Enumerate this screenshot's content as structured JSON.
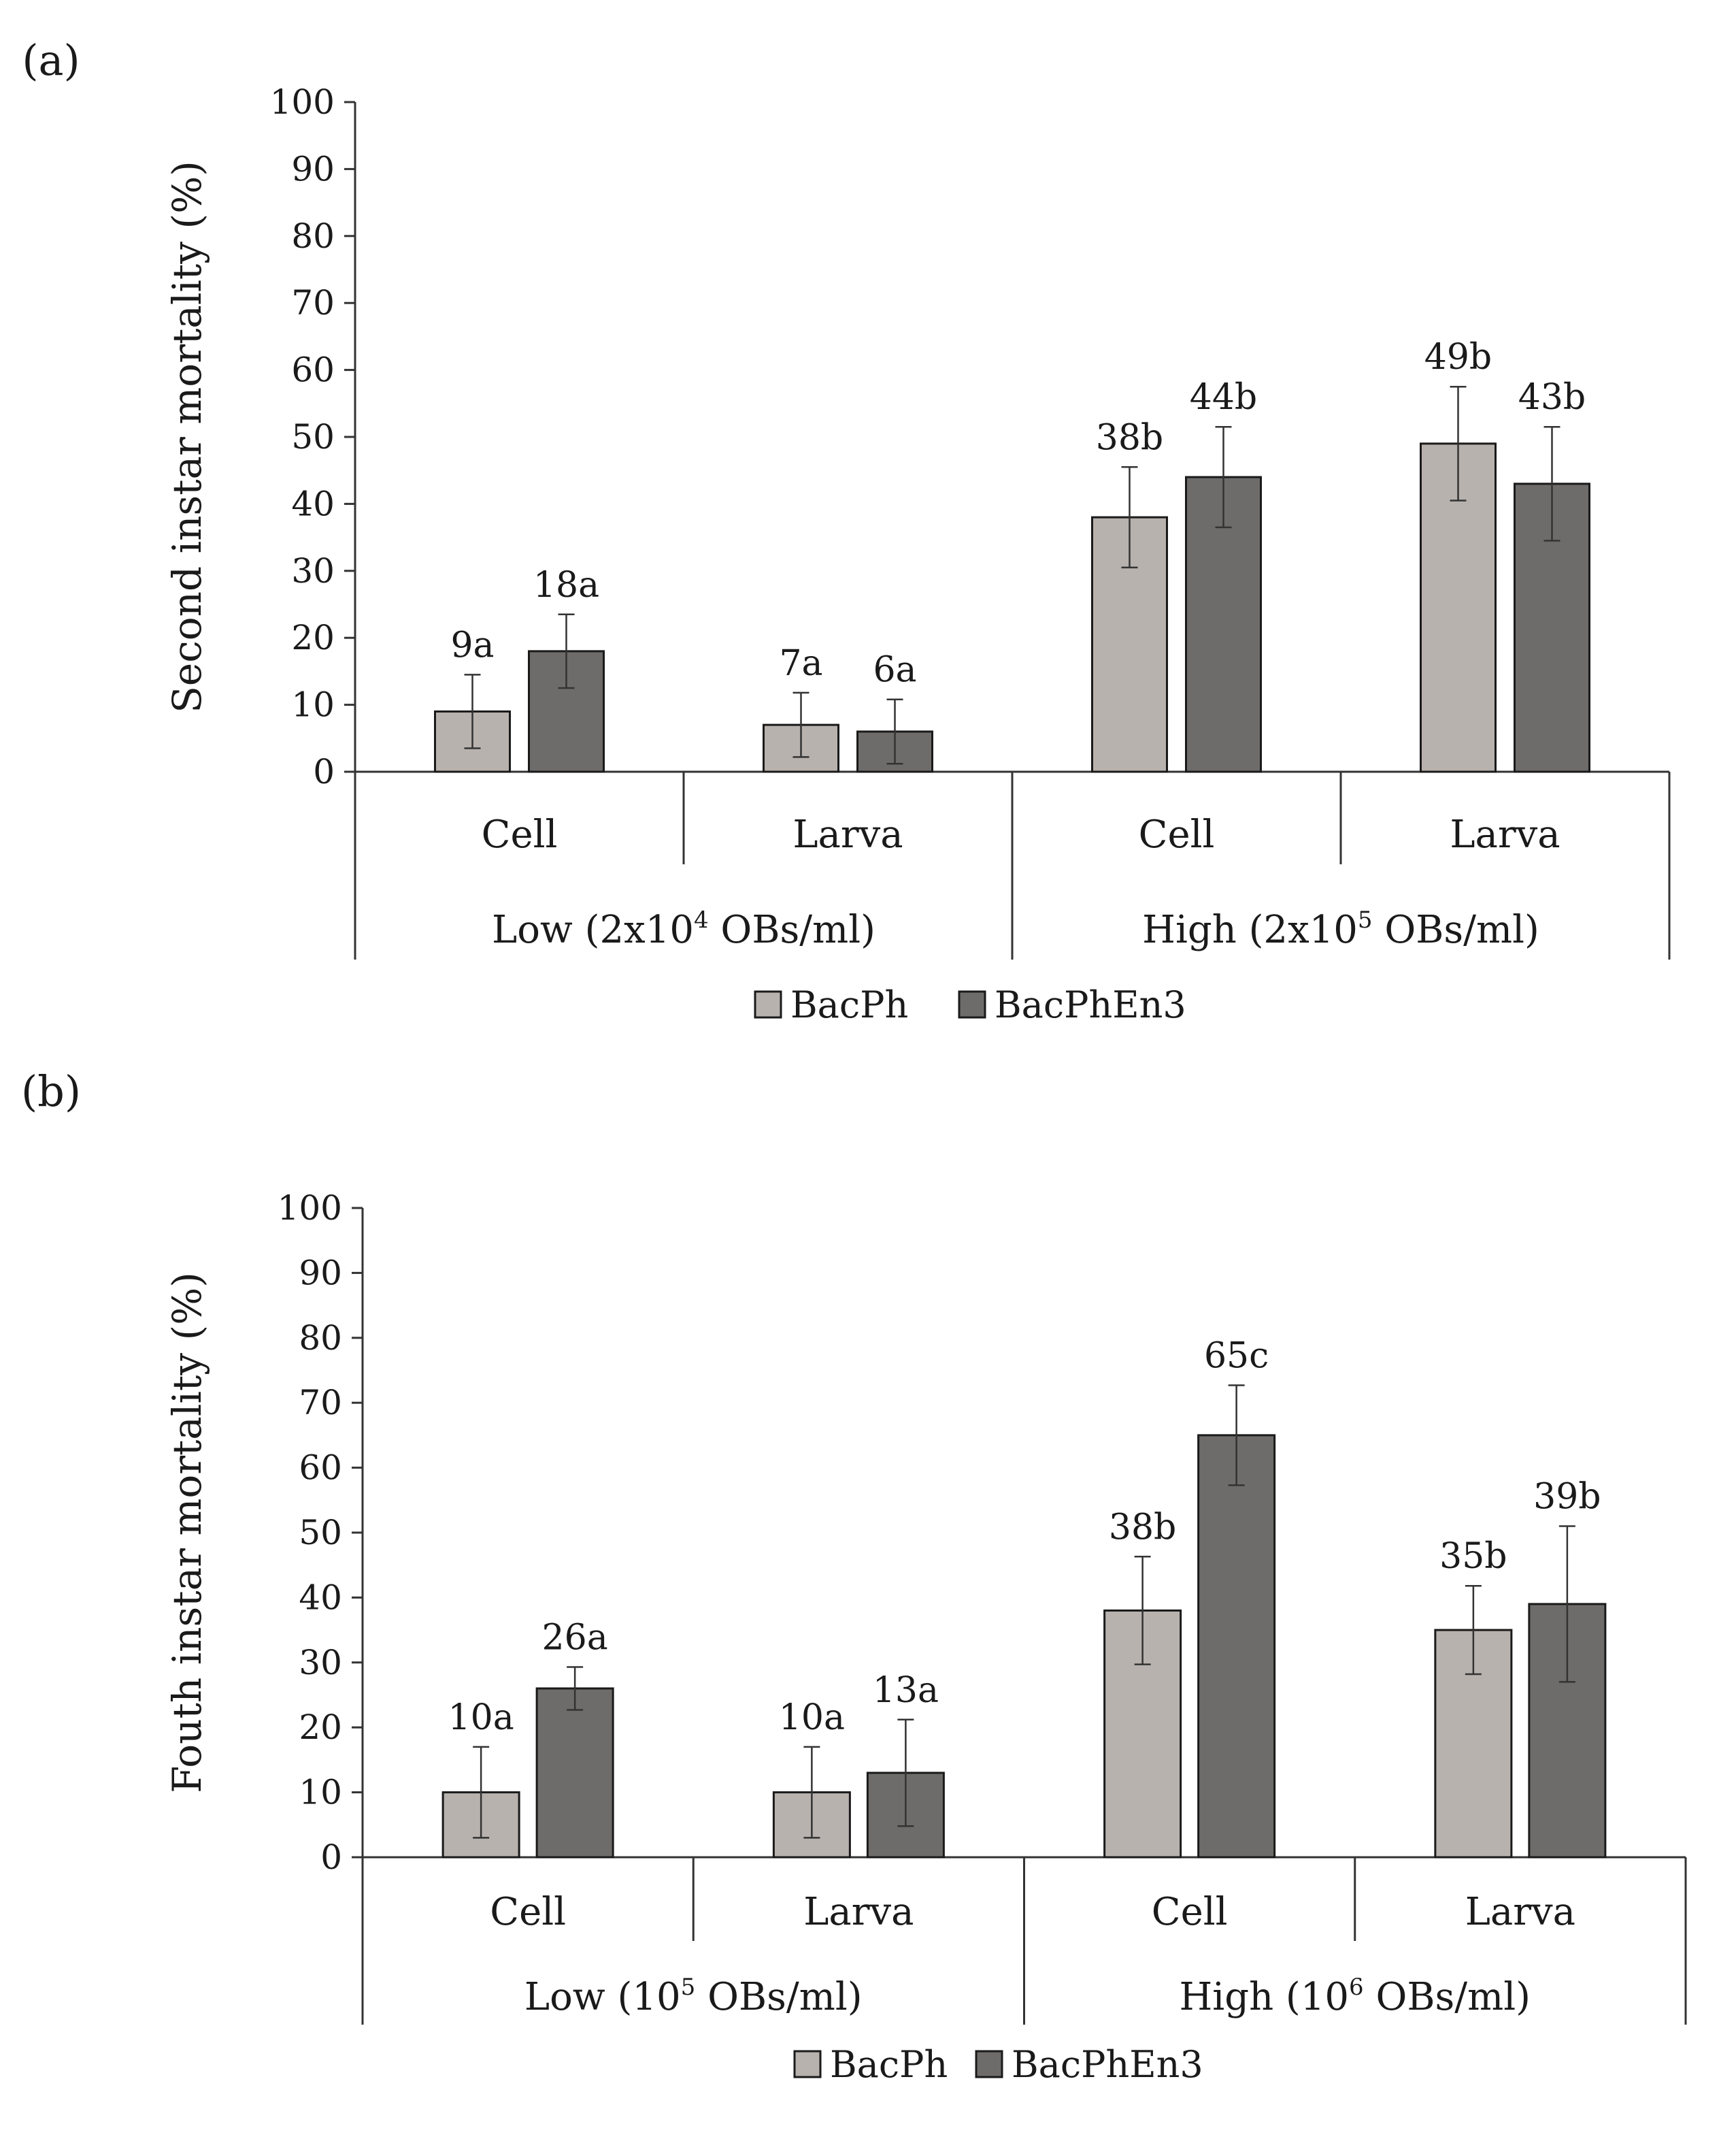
{
  "chart_data": [
    {
      "type": "bar",
      "panel_label": "(a)",
      "ylabel": "Second instar mortality (%)",
      "ylim": [
        0,
        100
      ],
      "yticks": [
        0,
        10,
        20,
        30,
        40,
        50,
        60,
        70,
        80,
        90,
        100
      ],
      "groups": [
        {
          "label_pre": "Low (2x10",
          "label_sup": "4",
          "label_post": " OBs/ml)",
          "categories": [
            "Cell",
            "Larva"
          ]
        },
        {
          "label_pre": "High (2x10",
          "label_sup": "5",
          "label_post": " OBs/ml)",
          "categories": [
            "Cell",
            "Larva"
          ]
        }
      ],
      "series": [
        {
          "name": "BacPh",
          "color": "#b8b2ae",
          "values": [
            9,
            7,
            38,
            49
          ],
          "errors": [
            5.5,
            4.8,
            7.5,
            8.5
          ],
          "labels": [
            "9a",
            "7a",
            "38b",
            "49b"
          ]
        },
        {
          "name": "BacPhEn3",
          "color": "#6e6c6a",
          "values": [
            18,
            6,
            44,
            43
          ],
          "errors": [
            5.5,
            4.8,
            7.5,
            8.5
          ],
          "labels": [
            "18a",
            "6a",
            "44b",
            "43b"
          ]
        }
      ]
    },
    {
      "type": "bar",
      "panel_label": "(b)",
      "ylabel": "Fouth instar mortality (%)",
      "ylim": [
        0,
        100
      ],
      "yticks": [
        0,
        10,
        20,
        30,
        40,
        50,
        60,
        70,
        80,
        90,
        100
      ],
      "groups": [
        {
          "label_pre": "Low (10",
          "label_sup": "5",
          "label_post": " OBs/ml)",
          "categories": [
            "Cell",
            "Larva"
          ]
        },
        {
          "label_pre": "High (10",
          "label_sup": "6",
          "label_post": " OBs/ml)",
          "categories": [
            "Cell",
            "Larva"
          ]
        }
      ],
      "series": [
        {
          "name": "BacPh",
          "color": "#b8b2ae",
          "values": [
            10,
            10,
            38,
            35
          ],
          "errors": [
            7,
            7,
            8.3,
            6.8
          ],
          "labels": [
            "10a",
            "10a",
            "38b",
            "35b"
          ]
        },
        {
          "name": "BacPhEn3",
          "color": "#6e6c6a",
          "values": [
            26,
            13,
            65,
            39
          ],
          "errors": [
            3.3,
            8.2,
            7.7,
            12
          ],
          "labels": [
            "26a",
            "13a",
            "65c",
            "39b"
          ]
        }
      ]
    }
  ]
}
